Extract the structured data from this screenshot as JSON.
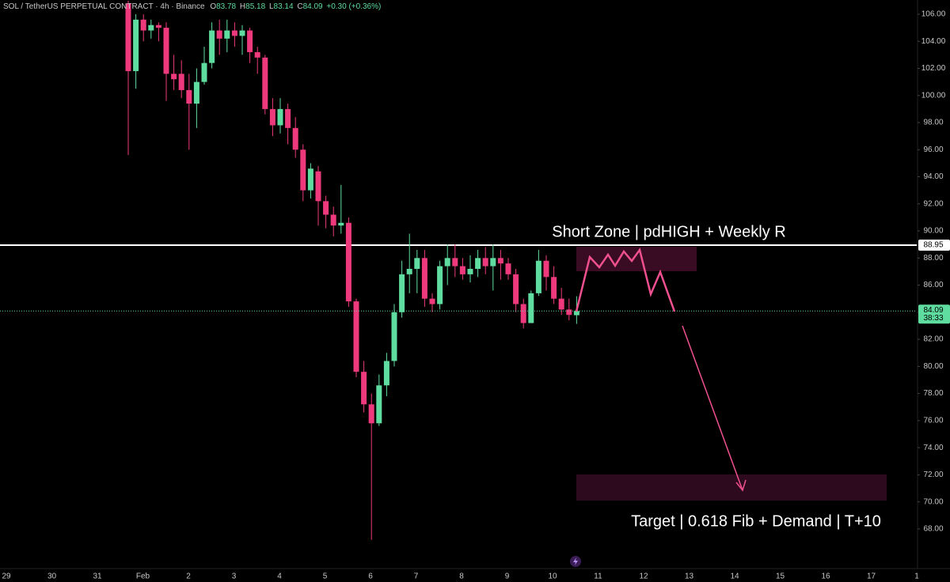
{
  "chart_data": {
    "type": "candlestick",
    "header": {
      "symbol": "SOL / TetherUS PERPETUAL CONTRACT · 4h · Binance",
      "o_prefix": "O",
      "h_prefix": "H",
      "l_prefix": "L",
      "c_prefix": "C",
      "change": "+0.30 (+0.36%)"
    },
    "up_color": "#5fdc9f",
    "down_color": "#ee3a7c",
    "ohlc": {
      "open": [
        106.8,
        101.8,
        105.6,
        104.8,
        105.2,
        105,
        101.6,
        101.6,
        100.4,
        99.4,
        101,
        102.4,
        104.8,
        104.2,
        104.8,
        104.4,
        104.8,
        103.2,
        102.8,
        99,
        97.8,
        99,
        97.6,
        96,
        93,
        94.4,
        92.2,
        91.2,
        90.4,
        90.6,
        84.8,
        79.6,
        77.2,
        75.8,
        78.6,
        80.4,
        84,
        86.8,
        87.2,
        88,
        85,
        84.6,
        87.4,
        88,
        87.4,
        86.8,
        87.2,
        88,
        87.4,
        88,
        87.6,
        86.8,
        84.6,
        83.2,
        85.4,
        87.8,
        86.6,
        85,
        84.2,
        83.78
      ],
      "high": [
        107,
        106,
        106,
        105.6,
        105.4,
        105.4,
        103,
        102.6,
        101.6,
        102,
        103.6,
        105.4,
        105.6,
        105.6,
        105.4,
        105.2,
        105,
        103.6,
        103,
        99.8,
        99.8,
        99.4,
        98.4,
        96.4,
        95,
        94.8,
        92.6,
        91.8,
        93.4,
        91,
        85,
        80.4,
        78,
        79.4,
        81,
        84.6,
        87.8,
        89.8,
        88.6,
        88.6,
        85.4,
        87.8,
        89,
        89,
        88,
        88.2,
        88.6,
        88.8,
        89,
        88.6,
        88,
        87.2,
        85,
        85.6,
        88.6,
        88.2,
        87.4,
        85.8,
        85,
        85.18
      ],
      "low": [
        95.6,
        100.5,
        104,
        104.2,
        104,
        99.6,
        100.4,
        99.8,
        96,
        97.6,
        100.8,
        102,
        103,
        103.2,
        103.6,
        103,
        102.4,
        101.6,
        98.6,
        97,
        97.2,
        96.4,
        95.4,
        92.2,
        92.4,
        90.4,
        90.2,
        89.6,
        89.8,
        84.4,
        79.2,
        76.6,
        67.2,
        75.6,
        77.8,
        80,
        83.6,
        85.4,
        85.4,
        84.4,
        84,
        84.2,
        86,
        86.6,
        86.4,
        86.2,
        86.6,
        86.8,
        85.6,
        86.4,
        86.4,
        84,
        82.8,
        83.2,
        85.2,
        85.6,
        84.6,
        83.8,
        83.4,
        83.14
      ],
      "close": [
        101.8,
        105.6,
        104.8,
        105.2,
        105,
        101.6,
        101.2,
        100.4,
        99.4,
        101,
        102.4,
        104.8,
        104.2,
        104.8,
        104.4,
        104.8,
        103.2,
        102.8,
        99,
        97.8,
        99,
        97.6,
        96,
        93,
        94.6,
        92.2,
        91.2,
        90.4,
        90.6,
        84.8,
        79.6,
        77.2,
        75.8,
        78.6,
        80.4,
        84,
        86.8,
        87.2,
        88,
        85,
        84.6,
        87.4,
        88,
        87.4,
        86.8,
        87.2,
        88,
        87.4,
        88,
        87.6,
        86.8,
        84.6,
        83.2,
        85.4,
        87.8,
        86.6,
        85,
        84.2,
        83.8,
        84.09
      ]
    },
    "ylim": [
      65.25,
      107.05
    ],
    "yticks": [
      {
        "value": 68,
        "label": "68.00"
      },
      {
        "value": 70,
        "label": "70.00"
      },
      {
        "value": 72,
        "label": "72.00"
      },
      {
        "value": 74,
        "label": "74.00"
      },
      {
        "value": 76,
        "label": "76.00"
      },
      {
        "value": 78,
        "label": "78.00"
      },
      {
        "value": 80,
        "label": "80.00"
      },
      {
        "value": 82,
        "label": "82.00"
      },
      {
        "value": 84,
        "label": "84.00"
      },
      {
        "value": 86,
        "label": "86.00"
      },
      {
        "value": 88,
        "label": "88.00"
      },
      {
        "value": 90,
        "label": "90.00"
      },
      {
        "value": 92,
        "label": "92.00"
      },
      {
        "value": 94,
        "label": "94.00"
      },
      {
        "value": 96,
        "label": "96.00"
      },
      {
        "value": 98,
        "label": "98.00"
      },
      {
        "value": 100,
        "label": "100.00"
      },
      {
        "value": 102,
        "label": "102.00"
      },
      {
        "value": 104,
        "label": "104.00"
      },
      {
        "value": 106,
        "label": "106.00"
      }
    ],
    "x_axis_labels": [
      "29",
      "30",
      "31",
      "Feb",
      "2",
      "3",
      "4",
      "5",
      "6",
      "7",
      "8",
      "9",
      "10",
      "11",
      "12",
      "13",
      "14",
      "15",
      "16",
      "17",
      "1"
    ],
    "level_line": 88.95,
    "countdown": "38:33",
    "annotations": {
      "short_zone": "Short Zone | pdHIGH + Weekly R",
      "target": "Target | 0.618 Fib + Demand | T+10"
    }
  }
}
